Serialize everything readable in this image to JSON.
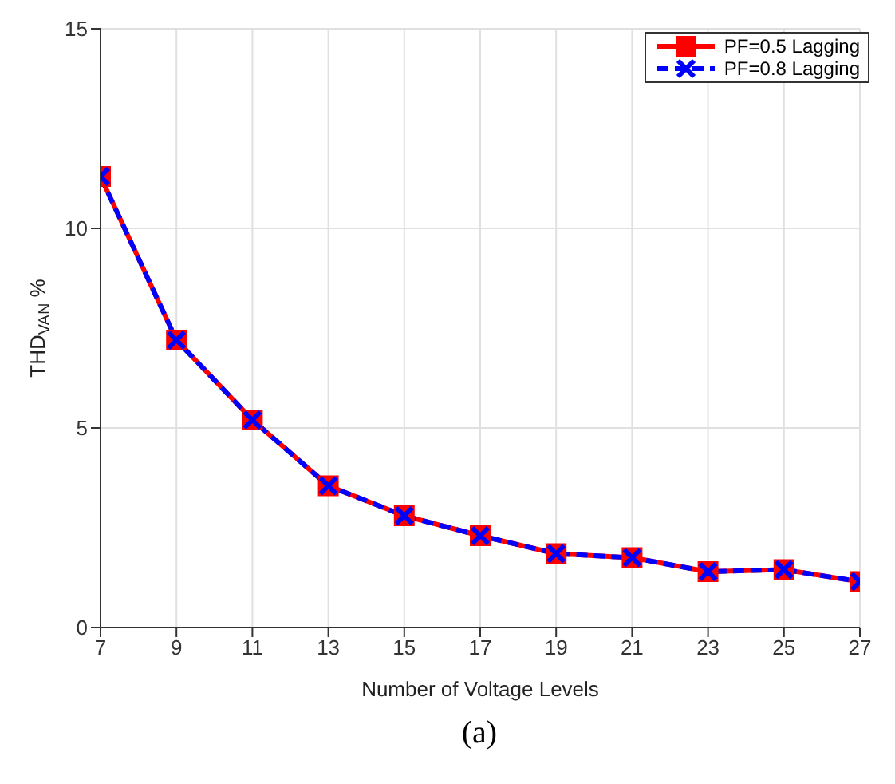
{
  "chart_data": {
    "type": "line",
    "xlabel": "Number of Voltage Levels",
    "ylabel": "THD$_{VAN}$ %",
    "annotations": [
      "(a)"
    ],
    "x": [
      7,
      9,
      11,
      13,
      15,
      17,
      19,
      21,
      23,
      25,
      27
    ],
    "series": [
      {
        "name": "PF=0.5 Lagging",
        "color": "#ff0000",
        "marker": "square",
        "line_style": "solid",
        "values": [
          11.3,
          7.2,
          5.2,
          3.55,
          2.8,
          2.3,
          1.85,
          1.75,
          1.4,
          1.45,
          1.15
        ]
      },
      {
        "name": "PF=0.8 Lagging",
        "color": "#0000ff",
        "marker": "cross",
        "line_style": "dashed",
        "values": [
          11.3,
          7.2,
          5.2,
          3.55,
          2.8,
          2.3,
          1.85,
          1.75,
          1.4,
          1.45,
          1.15
        ]
      }
    ],
    "xlim": [
      7,
      27
    ],
    "xticks": [
      7,
      9,
      11,
      13,
      15,
      17,
      19,
      21,
      23,
      25,
      27
    ],
    "ylim": [
      0,
      15
    ],
    "yticks": [
      0,
      5,
      10,
      15
    ],
    "grid": true,
    "legend": "top right"
  }
}
